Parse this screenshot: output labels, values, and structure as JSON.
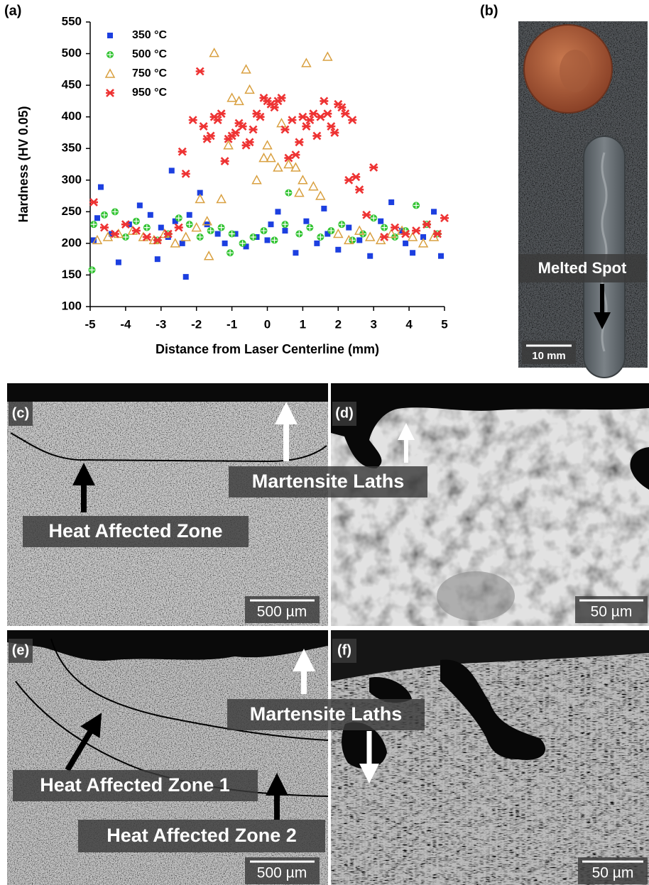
{
  "chart_data": {
    "type": "scatter",
    "x_label": "Distance from Laser Centerline (mm)",
    "y_label": "Hardness (HV 0.05)",
    "xlim": [
      -5,
      5
    ],
    "xticks": [
      -5,
      -4,
      -3,
      -2,
      -1,
      0,
      1,
      2,
      3,
      4,
      5
    ],
    "ylim": [
      100,
      550
    ],
    "yticks": [
      100,
      150,
      200,
      250,
      300,
      350,
      400,
      450,
      500,
      550
    ],
    "legend": "upper left",
    "series": [
      {
        "name": "350 °C",
        "color": "#1c3fe0",
        "marker": "square",
        "x": [
          -4.9,
          -4.7,
          -4.4,
          -4.2,
          -3.9,
          -3.6,
          -3.3,
          -3.1,
          -2.8,
          -2.6,
          -2.4,
          -2.2,
          -1.9,
          -1.7,
          -1.4,
          -1.2,
          -0.9,
          -0.6,
          -0.3,
          0,
          0.3,
          0.5,
          0.8,
          1.1,
          1.4,
          1.7,
          2.0,
          2.3,
          2.6,
          2.9,
          3.2,
          3.5,
          3.8,
          4.1,
          4.4,
          4.7,
          4.9,
          -4.8,
          -3.0,
          -2.7,
          -2.3,
          0.1,
          1.6,
          3.9
        ],
        "values": [
          205,
          289,
          215,
          170,
          230,
          260,
          245,
          175,
          210,
          235,
          200,
          245,
          280,
          230,
          215,
          200,
          215,
          195,
          210,
          205,
          250,
          220,
          185,
          235,
          200,
          215,
          190,
          225,
          205,
          180,
          235,
          265,
          220,
          185,
          210,
          250,
          180,
          240,
          225,
          315,
          147,
          230,
          255,
          200
        ]
      },
      {
        "name": "500 °C",
        "color": "#33c433",
        "marker": "circle",
        "x": [
          -4.9,
          -4.6,
          -4.3,
          -4.0,
          -3.7,
          -3.4,
          -3.1,
          -2.8,
          -2.5,
          -2.2,
          -1.9,
          -1.6,
          -1.3,
          -1.0,
          -0.7,
          -0.4,
          -0.1,
          0.2,
          0.5,
          0.6,
          0.9,
          1.2,
          1.5,
          1.8,
          2.1,
          2.4,
          2.7,
          3.0,
          3.3,
          3.6,
          3.9,
          4.2,
          4.5,
          4.8,
          -4.95,
          -1.05
        ],
        "values": [
          230,
          245,
          250,
          210,
          235,
          225,
          205,
          215,
          240,
          230,
          210,
          220,
          225,
          215,
          200,
          210,
          220,
          205,
          230,
          280,
          215,
          225,
          210,
          220,
          230,
          205,
          215,
          240,
          225,
          210,
          220,
          260,
          230,
          215,
          158,
          185
        ]
      },
      {
        "name": "750 °C",
        "color": "#d9a040",
        "marker": "triangle",
        "x": [
          -4.8,
          -4.5,
          -4.2,
          -3.8,
          -3.5,
          -3.2,
          -2.9,
          -2.6,
          -2.3,
          -2.0,
          -1.7,
          -1.5,
          -1.3,
          -1.1,
          -1.0,
          -0.8,
          -0.6,
          -0.5,
          -0.3,
          -0.1,
          0.0,
          0.1,
          0.3,
          0.4,
          0.6,
          0.8,
          0.9,
          1.0,
          1.1,
          1.3,
          1.5,
          1.7,
          2.0,
          2.3,
          2.6,
          2.9,
          3.2,
          3.5,
          3.8,
          4.1,
          4.4,
          4.7,
          -1.65,
          -1.9
        ],
        "values": [
          205,
          210,
          215,
          220,
          210,
          205,
          215,
          200,
          210,
          225,
          235,
          501,
          270,
          355,
          430,
          425,
          475,
          443,
          300,
          335,
          355,
          335,
          320,
          390,
          325,
          320,
          280,
          300,
          485,
          290,
          275,
          495,
          215,
          205,
          220,
          210,
          205,
          215,
          220,
          210,
          200,
          210,
          180,
          270
        ]
      },
      {
        "name": "950 °C",
        "color": "#ee3333",
        "marker": "x",
        "x": [
          -4.9,
          -4.6,
          -4.3,
          -4.0,
          -3.7,
          -3.4,
          -3.1,
          -2.8,
          -2.5,
          -2.4,
          -2.3,
          -2.1,
          -1.9,
          -1.8,
          -1.7,
          -1.6,
          -1.5,
          -1.4,
          -1.3,
          -1.2,
          -1.1,
          -1.0,
          -0.9,
          -0.8,
          -0.7,
          -0.6,
          -0.5,
          -0.4,
          -0.3,
          -0.2,
          -0.1,
          0.0,
          0.1,
          0.2,
          0.3,
          0.4,
          0.5,
          0.6,
          0.7,
          0.8,
          0.9,
          1.0,
          1.1,
          1.2,
          1.3,
          1.4,
          1.5,
          1.6,
          1.7,
          1.8,
          1.9,
          2.0,
          2.1,
          2.2,
          2.3,
          2.4,
          2.5,
          2.6,
          2.8,
          3.0,
          3.3,
          3.6,
          3.9,
          4.2,
          4.5,
          4.8,
          5.0
        ],
        "values": [
          265,
          225,
          215,
          230,
          220,
          210,
          205,
          215,
          225,
          345,
          310,
          395,
          472,
          385,
          365,
          370,
          400,
          395,
          405,
          330,
          365,
          370,
          375,
          390,
          385,
          355,
          360,
          380,
          405,
          400,
          430,
          425,
          420,
          415,
          425,
          430,
          380,
          335,
          395,
          340,
          360,
          400,
          385,
          395,
          405,
          370,
          400,
          425,
          405,
          385,
          375,
          420,
          415,
          405,
          300,
          395,
          305,
          285,
          245,
          320,
          210,
          225,
          215,
          220,
          230,
          215,
          240
        ]
      }
    ]
  },
  "panels": {
    "a": {
      "label": "(a)"
    },
    "b": {
      "label": "(b)",
      "annotation": "Melted Spot",
      "scale": "10 mm"
    },
    "c": {
      "label": "(c)",
      "arrow_up": "Martensite Laths",
      "zone": "Heat Affected Zone",
      "scale": "500 µm"
    },
    "d": {
      "label": "(d)",
      "scale": "50 µm"
    },
    "e": {
      "label": "(e)",
      "arrow_up": "Martensite Laths",
      "zone_1": "Heat Affected Zone 1",
      "zone_2": "Heat Affected Zone 2",
      "scale": "500 µm"
    },
    "f": {
      "label": "(f)",
      "scale": "50 µm"
    }
  }
}
